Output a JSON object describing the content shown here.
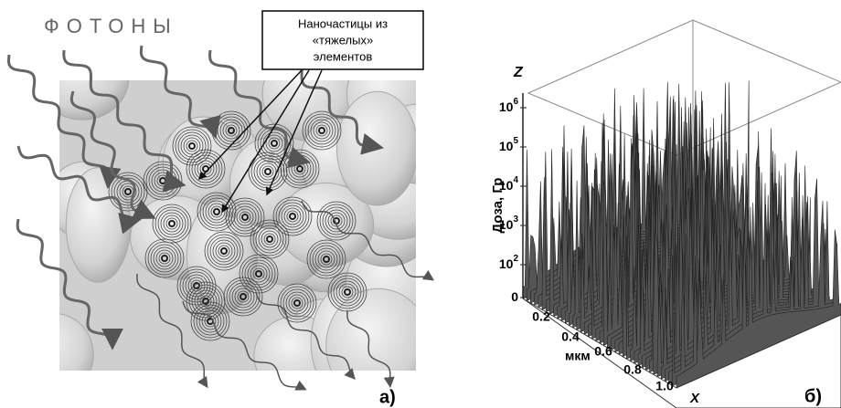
{
  "panel_a": {
    "title": "ФОТОНЫ",
    "callout": [
      "Наночастицы из",
      "«тяжелых»",
      "элементов"
    ],
    "label": "а)"
  },
  "panel_b": {
    "z_axis": "Z",
    "y_label": "Доза, Гр",
    "z_ticks": [
      {
        "base": "10",
        "exp": "6"
      },
      {
        "base": "10",
        "exp": "5"
      },
      {
        "base": "10",
        "exp": "4"
      },
      {
        "base": "10",
        "exp": "3"
      },
      {
        "base": "10",
        "exp": "2"
      },
      {
        "base": "0"
      }
    ],
    "x_ticks": [
      "0.2",
      "0.4",
      "0.6",
      "0.8",
      "1.0"
    ],
    "x_unit": "мкм",
    "x_axis": "X",
    "label": "б)"
  }
}
